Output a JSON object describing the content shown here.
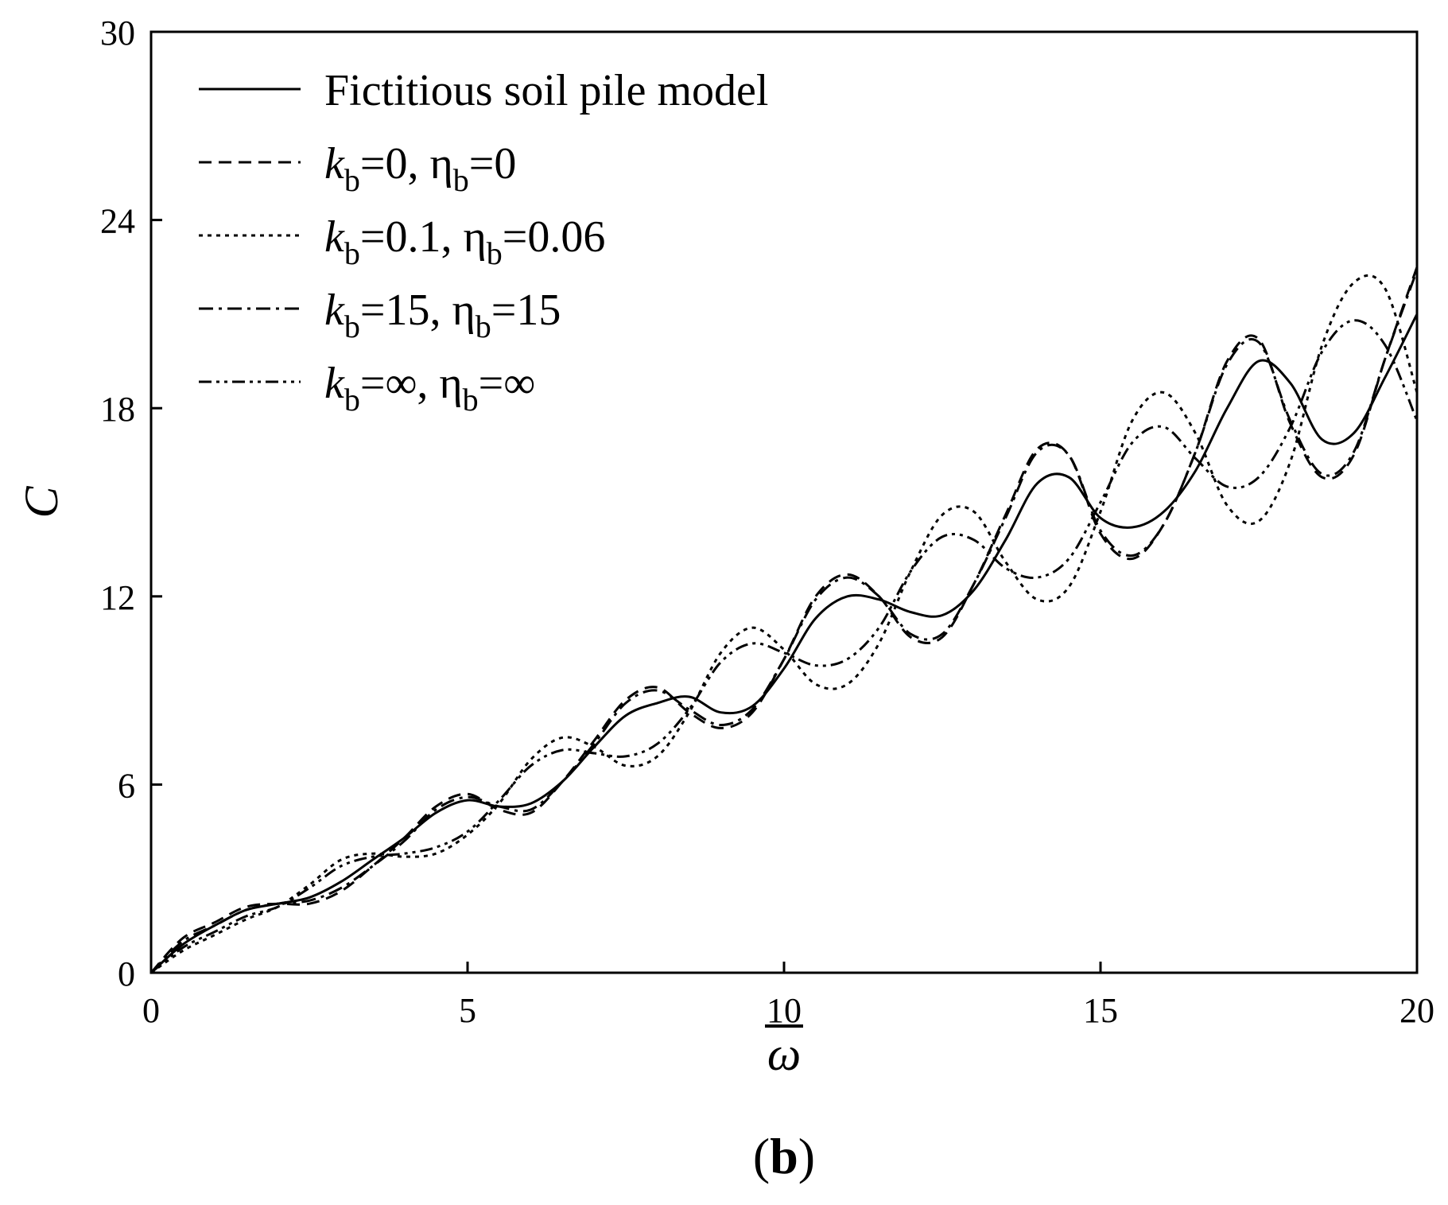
{
  "chart_data": {
    "type": "line",
    "xlabel": "ω",
    "ylabel": "C",
    "panel_label": {
      "open": "(",
      "letter": "b",
      "close": ")"
    },
    "xlim": [
      0,
      20
    ],
    "ylim": [
      0,
      30
    ],
    "xticks": [
      0,
      5,
      10,
      15,
      20
    ],
    "yticks": [
      0,
      6,
      12,
      18,
      24,
      30
    ],
    "grid": false,
    "legend_position": "top-left",
    "series": [
      {
        "name": "Fictitious soil pile model",
        "legend_parts": [
          {
            "t": "Fictitious soil pile model"
          }
        ],
        "style": "solid",
        "x": [
          0,
          0.5,
          1,
          1.5,
          2,
          2.5,
          3,
          3.5,
          4,
          4.5,
          5,
          5.5,
          6,
          6.5,
          7,
          7.5,
          8,
          8.5,
          9,
          9.5,
          10,
          10.5,
          11,
          11.5,
          12,
          12.5,
          13,
          13.5,
          14,
          14.5,
          15,
          15.5,
          16,
          16.5,
          17,
          17.5,
          18,
          18.5,
          19,
          19.5,
          20
        ],
        "y": [
          0,
          0.9,
          1.5,
          2.0,
          2.2,
          2.4,
          2.9,
          3.6,
          4.3,
          5.1,
          5.5,
          5.3,
          5.4,
          6.1,
          7.2,
          8.2,
          8.6,
          8.8,
          8.3,
          8.5,
          9.7,
          11.3,
          12.0,
          11.9,
          11.5,
          11.4,
          12.2,
          13.8,
          15.6,
          15.8,
          14.5,
          14.2,
          14.7,
          16.0,
          18.0,
          19.5,
          18.8,
          17.0,
          17.2,
          19.0,
          21.0
        ]
      },
      {
        "name": "kb=0, ηb=0",
        "legend_parts": [
          {
            "t": "k",
            "i": true
          },
          {
            "t": "b",
            "sub": true
          },
          {
            "t": "=0, η"
          },
          {
            "t": "b",
            "sub": true
          },
          {
            "t": "=0"
          }
        ],
        "style": "dashed",
        "x": [
          0,
          0.5,
          1,
          1.5,
          2,
          2.5,
          3,
          3.5,
          4,
          4.5,
          5,
          5.5,
          6,
          6.5,
          7,
          7.5,
          8,
          8.5,
          9,
          9.5,
          10,
          10.5,
          11,
          11.5,
          12,
          12.5,
          13,
          13.5,
          14,
          14.5,
          15,
          15.5,
          16,
          16.5,
          17,
          17.5,
          18,
          18.5,
          19,
          19.5,
          20
        ],
        "y": [
          0,
          1.1,
          1.6,
          2.1,
          2.2,
          2.2,
          2.6,
          3.4,
          4.3,
          5.3,
          5.7,
          5.2,
          5.1,
          6.1,
          7.4,
          8.7,
          9.1,
          8.3,
          7.8,
          8.3,
          10.0,
          12.0,
          12.7,
          12.0,
          10.7,
          10.7,
          12.4,
          14.6,
          16.7,
          16.5,
          14.0,
          13.2,
          14.3,
          16.6,
          19.5,
          20.2,
          17.5,
          15.8,
          16.5,
          19.6,
          22.5
        ]
      },
      {
        "name": "kb=0.1, ηb=0.06",
        "legend_parts": [
          {
            "t": "k",
            "i": true
          },
          {
            "t": "b",
            "sub": true
          },
          {
            "t": "=0.1, η"
          },
          {
            "t": "b",
            "sub": true
          },
          {
            "t": "=0.06"
          }
        ],
        "style": "dotted",
        "x": [
          0,
          0.5,
          1,
          1.5,
          2,
          2.5,
          3,
          3.5,
          4,
          4.5,
          5,
          5.5,
          6,
          6.5,
          7,
          7.5,
          8,
          8.5,
          9,
          9.5,
          10,
          10.5,
          11,
          11.5,
          12,
          12.5,
          13,
          13.5,
          14,
          14.5,
          15,
          15.5,
          16,
          16.5,
          17,
          17.5,
          18,
          18.5,
          19,
          19.5,
          20
        ],
        "y": [
          0,
          0.7,
          1.2,
          1.7,
          2.1,
          2.8,
          3.6,
          3.8,
          3.7,
          3.8,
          4.4,
          5.4,
          6.8,
          7.5,
          7.2,
          6.6,
          6.9,
          8.3,
          10.2,
          11.0,
          10.3,
          9.2,
          9.2,
          10.5,
          12.8,
          14.6,
          14.7,
          13.1,
          11.9,
          12.3,
          14.7,
          17.6,
          18.5,
          17.2,
          14.9,
          14.4,
          16.3,
          20.0,
          22.0,
          21.8,
          18.5
        ]
      },
      {
        "name": "kb=15, ηb=15",
        "legend_parts": [
          {
            "t": "k",
            "i": true
          },
          {
            "t": "b",
            "sub": true
          },
          {
            "t": "=15, η"
          },
          {
            "t": "b",
            "sub": true
          },
          {
            "t": "=15"
          }
        ],
        "style": "dashdot",
        "x": [
          0,
          0.5,
          1,
          1.5,
          2,
          2.5,
          3,
          3.5,
          4,
          4.5,
          5,
          5.5,
          6,
          6.5,
          7,
          7.5,
          8,
          8.5,
          9,
          9.5,
          10,
          10.5,
          11,
          11.5,
          12,
          12.5,
          13,
          13.5,
          14,
          14.5,
          15,
          15.5,
          16,
          16.5,
          17,
          17.5,
          18,
          18.5,
          19,
          19.5,
          20
        ],
        "y": [
          0,
          1.0,
          1.5,
          2.0,
          2.2,
          2.3,
          2.7,
          3.4,
          4.2,
          5.2,
          5.6,
          5.3,
          5.2,
          6.1,
          7.3,
          8.6,
          9.0,
          8.4,
          7.9,
          8.4,
          10.0,
          11.9,
          12.6,
          12.0,
          10.8,
          10.8,
          12.4,
          14.5,
          16.6,
          16.5,
          14.1,
          13.3,
          14.3,
          16.6,
          19.4,
          20.1,
          17.6,
          15.9,
          16.6,
          19.6,
          22.4
        ]
      },
      {
        "name": "kb=∞, ηb=∞",
        "legend_parts": [
          {
            "t": "k",
            "i": true
          },
          {
            "t": "b",
            "sub": true
          },
          {
            "t": "=∞, η"
          },
          {
            "t": "b",
            "sub": true
          },
          {
            "t": "=∞"
          }
        ],
        "style": "dashdotdot",
        "x": [
          0,
          0.5,
          1,
          1.5,
          2,
          2.5,
          3,
          3.5,
          4,
          4.5,
          5,
          5.5,
          6,
          6.5,
          7,
          7.5,
          8,
          8.5,
          9,
          9.5,
          10,
          10.5,
          11,
          11.5,
          12,
          12.5,
          13,
          13.5,
          14,
          14.5,
          15,
          15.5,
          16,
          16.5,
          17,
          17.5,
          18,
          18.5,
          19,
          19.5,
          20
        ],
        "y": [
          0,
          0.8,
          1.3,
          1.8,
          2.1,
          2.7,
          3.4,
          3.7,
          3.8,
          4.0,
          4.5,
          5.5,
          6.6,
          7.1,
          7.0,
          6.9,
          7.3,
          8.4,
          9.9,
          10.5,
          10.2,
          9.8,
          10.0,
          11.0,
          12.8,
          13.9,
          13.8,
          12.9,
          12.6,
          13.2,
          15.0,
          16.9,
          17.4,
          16.4,
          15.5,
          15.8,
          17.4,
          19.8,
          20.8,
          20.0,
          17.6
        ]
      }
    ]
  }
}
